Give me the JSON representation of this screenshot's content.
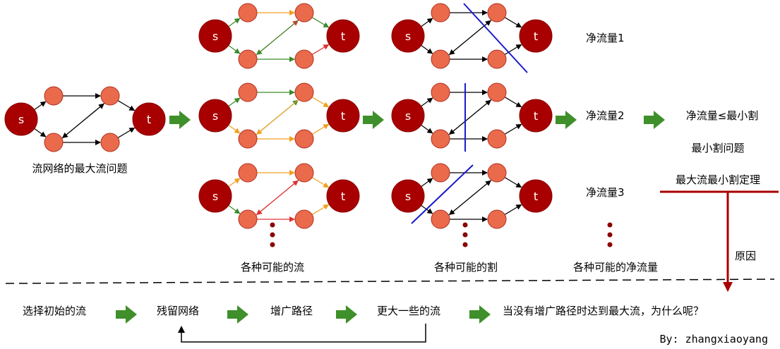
{
  "colors": {
    "small_node": "#ea6a4c",
    "big_node": "#a80000",
    "node_stroke": "#b03020",
    "edge": "#000000",
    "green_edge": "#3a8a2a",
    "orange_edge": "#f0a020",
    "red_edge": "#e03030",
    "cut_line": "#1a1acc",
    "arrow_fill": "#3f8f2a",
    "dots": "#8b0000",
    "bar": "#a80000"
  },
  "nodes": {
    "source": "s",
    "sink": "t"
  },
  "labels": {
    "max_flow_problem": "流网络的最大流问题",
    "all_possible_flows": "各种可能的流",
    "all_possible_cuts": "各种可能的割",
    "all_possible_net_flows": "各种可能的净流量",
    "net_flow_1": "净流量1",
    "net_flow_2": "净流量2",
    "net_flow_3": "净流量3",
    "net_flow_le_min_cut": "净流量≤最小割",
    "min_cut_problem": "最小割问题",
    "max_flow_min_cut_theorem": "最大流最小割定理",
    "reason": "原因"
  },
  "process": {
    "steps": [
      "选择初始的流",
      "残留网络",
      "增广路径",
      "更大一些的流"
    ],
    "question": "当没有增广路径时达到最大流，为什么呢？"
  },
  "author": "By: zhangxiaoyang",
  "icons": {
    "step_arrow": "right-arrow-icon",
    "ellipsis": "vertical-ellipsis-icon"
  }
}
